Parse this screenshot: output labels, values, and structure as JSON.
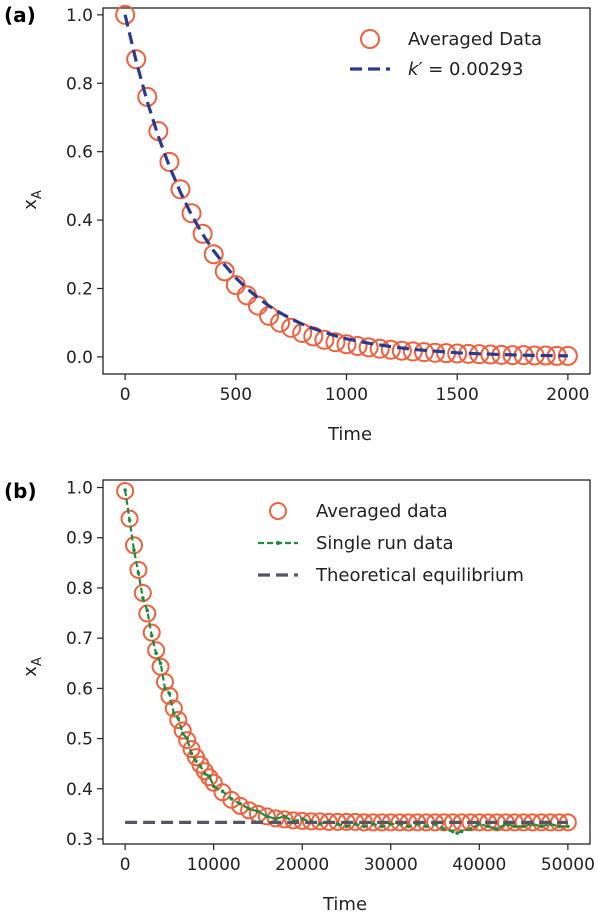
{
  "chart_data": [
    {
      "type": "scatter",
      "panel_label": "(a)",
      "xlabel": "Time",
      "ylabel": "x",
      "ylabel_sub": "A",
      "xlim": [
        -100,
        2100
      ],
      "ylim": [
        -0.05,
        1.02
      ],
      "xticks": [
        0,
        500,
        1000,
        1500,
        2000
      ],
      "yticks": [
        0.0,
        0.2,
        0.4,
        0.6,
        0.8,
        1.0
      ],
      "xtick_labels": [
        "0",
        "500",
        "1000",
        "1500",
        "2000"
      ],
      "ytick_labels": [
        "0.0",
        "0.2",
        "0.4",
        "0.6",
        "0.8",
        "1.0"
      ],
      "legend_position": "top-right",
      "series": [
        {
          "name": "Averaged Data",
          "kind": "markers",
          "color": "#f0603c",
          "x": [
            0,
            50,
            100,
            150,
            200,
            250,
            300,
            350,
            400,
            450,
            500,
            550,
            600,
            650,
            700,
            750,
            800,
            850,
            900,
            950,
            1000,
            1050,
            1100,
            1150,
            1200,
            1250,
            1300,
            1350,
            1400,
            1450,
            1500,
            1550,
            1600,
            1650,
            1700,
            1750,
            1800,
            1850,
            1900,
            1950,
            2000
          ],
          "y": [
            1.0,
            0.87,
            0.76,
            0.66,
            0.57,
            0.49,
            0.42,
            0.36,
            0.3,
            0.25,
            0.21,
            0.18,
            0.15,
            0.12,
            0.1,
            0.085,
            0.07,
            0.06,
            0.05,
            0.043,
            0.037,
            0.032,
            0.028,
            0.024,
            0.021,
            0.018,
            0.016,
            0.014,
            0.012,
            0.011,
            0.01,
            0.009,
            0.008,
            0.007,
            0.006,
            0.005,
            0.005,
            0.004,
            0.004,
            0.003,
            0.003
          ]
        },
        {
          "name": "k′ = 0.00293",
          "name_italic": "k′",
          "name_rest": " = 0.00293",
          "kind": "dashed-line",
          "color": "#2b3990",
          "x": [
            0,
            50,
            100,
            150,
            200,
            250,
            300,
            350,
            400,
            450,
            500,
            550,
            600,
            650,
            700,
            750,
            800,
            850,
            900,
            950,
            1000,
            1100,
            1200,
            1300,
            1400,
            1500,
            1600,
            1700,
            1800,
            1900,
            2000
          ],
          "y": [
            1.0,
            0.864,
            0.746,
            0.645,
            0.557,
            0.481,
            0.415,
            0.359,
            0.31,
            0.268,
            0.231,
            0.2,
            0.173,
            0.149,
            0.129,
            0.111,
            0.096,
            0.083,
            0.072,
            0.062,
            0.053,
            0.04,
            0.03,
            0.022,
            0.017,
            0.012,
            0.009,
            0.007,
            0.005,
            0.004,
            0.003
          ]
        }
      ]
    },
    {
      "type": "scatter",
      "panel_label": "(b)",
      "xlabel": "Time",
      "ylabel": "x",
      "ylabel_sub": "A",
      "xlim": [
        -2500,
        52500
      ],
      "ylim": [
        0.29,
        1.015
      ],
      "xticks": [
        0,
        10000,
        20000,
        30000,
        40000,
        50000
      ],
      "yticks": [
        0.3,
        0.4,
        0.5,
        0.6,
        0.7,
        0.8,
        0.9,
        1.0
      ],
      "xtick_labels": [
        "0",
        "10000",
        "20000",
        "30000",
        "40000",
        "50000"
      ],
      "ytick_labels": [
        "0.3",
        "0.4",
        "0.5",
        "0.6",
        "0.7",
        "0.8",
        "0.9",
        "1.0"
      ],
      "legend_position": "top-right",
      "series": [
        {
          "name": "Averaged data",
          "kind": "markers",
          "color": "#f0603c",
          "x": [
            0,
            500,
            1000,
            1500,
            2000,
            2500,
            3000,
            3500,
            4000,
            4500,
            5000,
            5500,
            6000,
            6500,
            7000,
            7500,
            8000,
            8500,
            9000,
            9500,
            10000,
            11000,
            12000,
            13000,
            14000,
            15000,
            16000,
            17000,
            18000,
            19000,
            20000,
            21000,
            22000,
            23000,
            24000,
            25000,
            26000,
            27000,
            28000,
            29000,
            30000,
            31000,
            32000,
            33000,
            34000,
            35000,
            36000,
            37000,
            38000,
            39000,
            40000,
            41000,
            42000,
            43000,
            44000,
            45000,
            46000,
            47000,
            48000,
            49000,
            50000
          ],
          "y": [
            0.993,
            0.938,
            0.885,
            0.836,
            0.79,
            0.749,
            0.711,
            0.676,
            0.643,
            0.613,
            0.585,
            0.56,
            0.537,
            0.516,
            0.497,
            0.479,
            0.463,
            0.448,
            0.435,
            0.423,
            0.412,
            0.393,
            0.378,
            0.366,
            0.357,
            0.35,
            0.345,
            0.341,
            0.339,
            0.337,
            0.336,
            0.335,
            0.335,
            0.334,
            0.334,
            0.334,
            0.334,
            0.333,
            0.333,
            0.333,
            0.333,
            0.333,
            0.333,
            0.333,
            0.333,
            0.333,
            0.333,
            0.333,
            0.333,
            0.333,
            0.333,
            0.333,
            0.333,
            0.333,
            0.333,
            0.333,
            0.333,
            0.333,
            0.333,
            0.333,
            0.333
          ]
        },
        {
          "name": "Single run data",
          "kind": "dotted-dashed-line",
          "color": "#1e8c3c",
          "x": [
            0,
            500,
            1000,
            1500,
            2000,
            2500,
            3000,
            3500,
            4000,
            4500,
            5000,
            5500,
            6000,
            6500,
            7000,
            7500,
            8000,
            8500,
            9000,
            9500,
            10000,
            11000,
            12000,
            13000,
            14000,
            15000,
            16000,
            17000,
            18000,
            19000,
            20000,
            21000,
            22000,
            23000,
            24000,
            25000,
            26000,
            27000,
            28000,
            29000,
            30000,
            31000,
            32000,
            33000,
            34000,
            35000,
            36000,
            37000,
            37500,
            38000,
            39000,
            40000,
            41000,
            42000,
            43000,
            44000,
            45000,
            46000,
            47000,
            48000,
            49000,
            50000
          ],
          "y": [
            0.995,
            0.935,
            0.875,
            0.83,
            0.78,
            0.755,
            0.705,
            0.67,
            0.65,
            0.6,
            0.59,
            0.55,
            0.54,
            0.51,
            0.5,
            0.47,
            0.455,
            0.445,
            0.43,
            0.425,
            0.405,
            0.395,
            0.38,
            0.37,
            0.36,
            0.355,
            0.345,
            0.34,
            0.345,
            0.335,
            0.34,
            0.335,
            0.33,
            0.335,
            0.33,
            0.325,
            0.33,
            0.325,
            0.33,
            0.325,
            0.33,
            0.33,
            0.325,
            0.33,
            0.325,
            0.33,
            0.32,
            0.315,
            0.312,
            0.315,
            0.32,
            0.33,
            0.325,
            0.32,
            0.33,
            0.325,
            0.325,
            0.33,
            0.325,
            0.33,
            0.325,
            0.325
          ]
        },
        {
          "name": "Theoretical equilibrium",
          "kind": "dashed-line",
          "color": "#555566",
          "x": [
            0,
            50000
          ],
          "y": [
            0.333,
            0.333
          ]
        }
      ]
    }
  ]
}
